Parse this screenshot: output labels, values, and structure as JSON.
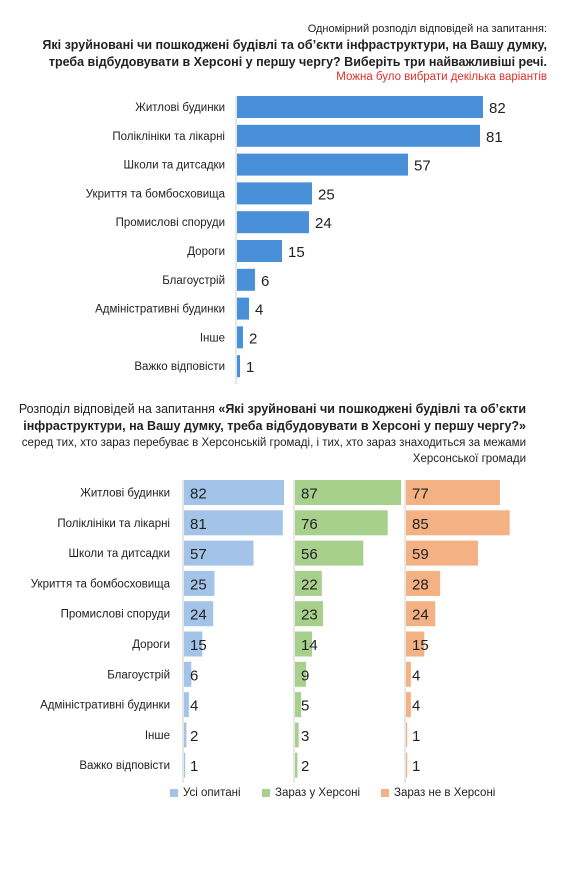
{
  "chart_data": [
    {
      "type": "bar",
      "orientation": "horizontal",
      "pretitle": "Одномірний розподіл відповідей на запитання:",
      "title": "Які зруйновані чи пошкоджені будівлі та об’єкти інфраструктури, на Вашу думку, треба відбудовувати в Херсоні у першу чергу? Виберіть три найважливіші речі.",
      "note": "Можна було вибрати декілька варіантів",
      "categories": [
        "Житлові будинки",
        "Поліклініки та лікарні",
        "Школи та дитсадки",
        "Укриття та бомбосховища",
        "Промислові споруди",
        "Дороги",
        "Благоустрій",
        "Адміністративні будинки",
        "Інше",
        "Важко відповісти"
      ],
      "values": [
        82,
        81,
        57,
        25,
        24,
        15,
        6,
        4,
        2,
        1
      ],
      "color": "#4a90d9",
      "xlim": [
        0,
        100
      ]
    },
    {
      "type": "bar",
      "orientation": "horizontal",
      "title_prefix": "Розподіл відповідей на запитання ",
      "title_bold": "«Які зруйновані чи пошкоджені будівлі та об’єкти інфраструктури, на Вашу думку, треба відбудовувати в Херсоні у першу чергу?»",
      "subtitle": "серед тих, хто зараз перебуває в Херсонській громаді, і тих, хто зараз знаходиться за межами Херсонської громади",
      "categories": [
        "Житлові будинки",
        "Поліклініки та лікарні",
        "Школи та дитсадки",
        "Укриття та бомбосховища",
        "Промислові споруди",
        "Дороги",
        "Благоустрій",
        "Адміністративні будинки",
        "Інше",
        "Важко відповісти"
      ],
      "series": [
        {
          "name": "Усі опитані",
          "values": [
            82,
            81,
            57,
            25,
            24,
            15,
            6,
            4,
            2,
            1
          ],
          "color": "#a3c4e8"
        },
        {
          "name": "Зараз у Херсоні",
          "values": [
            87,
            76,
            56,
            22,
            23,
            14,
            9,
            5,
            3,
            2
          ],
          "color": "#a8d08d"
        },
        {
          "name": "Зараз не в Херсоні",
          "values": [
            77,
            85,
            59,
            28,
            24,
            15,
            4,
            4,
            1,
            1
          ],
          "color": "#f4b183"
        }
      ],
      "xlim": [
        0,
        100
      ]
    }
  ]
}
